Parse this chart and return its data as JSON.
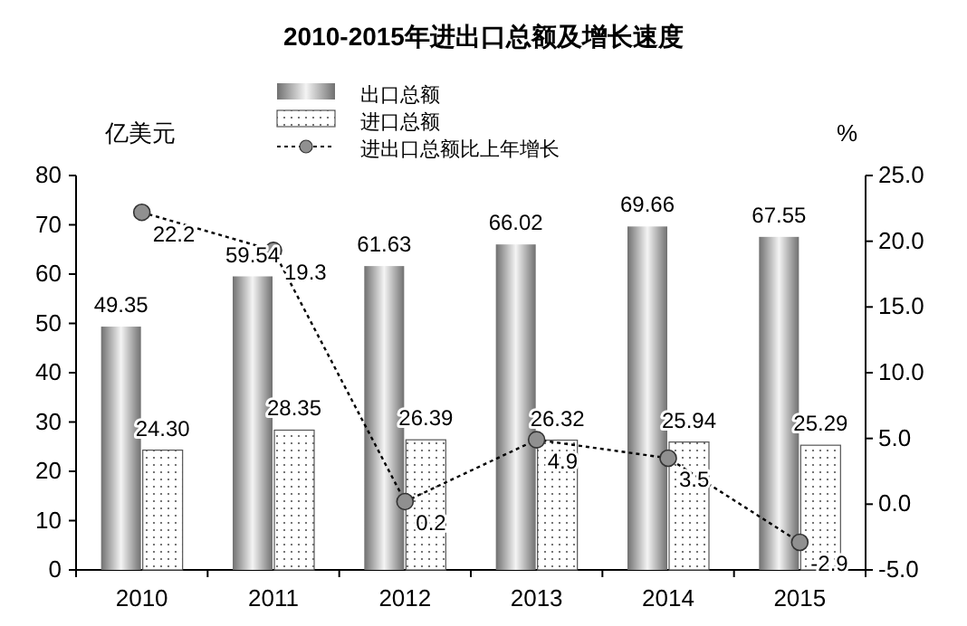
{
  "chart_data": {
    "type": "bar",
    "title": "2010-2015年进出口总额及增长速度",
    "ylabel": "亿美元",
    "y2label": "%",
    "categories": [
      "2010",
      "2011",
      "2012",
      "2013",
      "2014",
      "2015"
    ],
    "series": [
      {
        "name": "出口总额",
        "color": "#a0a0a0",
        "values": [
          49.35,
          59.54,
          61.63,
          66.02,
          69.66,
          67.55
        ],
        "value_labels": [
          "49.35",
          "59.54",
          "61.63",
          "66.02",
          "69.66",
          "67.55"
        ]
      },
      {
        "name": "进口总额",
        "color": "#555555",
        "values": [
          24.3,
          28.35,
          26.39,
          26.32,
          25.94,
          25.29
        ],
        "value_labels": [
          "24.30",
          "28.35",
          "26.39",
          "26.32",
          "25.94",
          "25.29"
        ]
      },
      {
        "name": "进出口总额比上年增长",
        "type": "line",
        "axis": "y2",
        "color": "#000000",
        "marker": "circle",
        "line_style": "dotted",
        "values": [
          22.2,
          19.3,
          0.2,
          4.9,
          3.5,
          -2.9
        ],
        "value_labels": [
          "22.2",
          "19.3",
          "0.2",
          "4.9",
          "3.5",
          "-2.9"
        ]
      }
    ],
    "ylim": [
      0,
      80
    ],
    "yticks": [
      0,
      10,
      20,
      30,
      40,
      50,
      60,
      70,
      80
    ],
    "y2lim": [
      -5,
      25
    ],
    "y2ticks": [
      {
        "value": -5,
        "label": "-5.0"
      },
      {
        "value": 0,
        "label": "0.0"
      },
      {
        "value": 5,
        "label": "5.0"
      },
      {
        "value": 10,
        "label": "10.0"
      },
      {
        "value": 15,
        "label": "15.0"
      },
      {
        "value": 20,
        "label": "20.0"
      },
      {
        "value": 25,
        "label": "25.0"
      }
    ],
    "legend": "top",
    "grid": false
  }
}
